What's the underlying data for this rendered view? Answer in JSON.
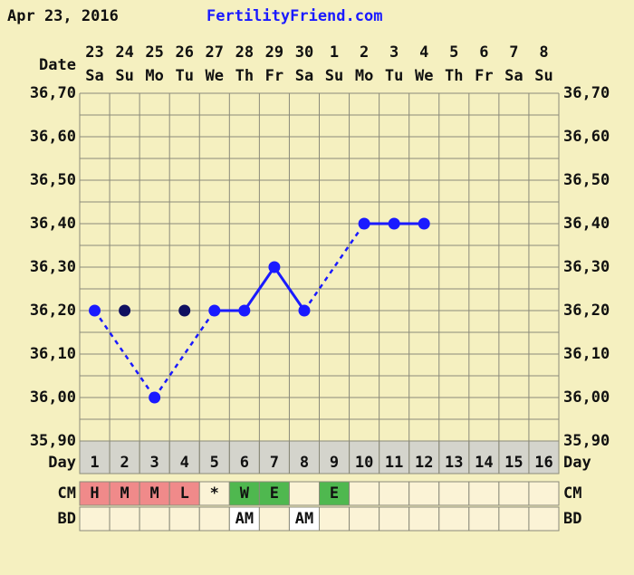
{
  "chart_data": {
    "type": "line",
    "date": "Apr 23, 2016",
    "title": "FertilityFriend.com",
    "x_label": "Date",
    "day_label": "Day",
    "cm_label": "CM",
    "bd_label": "BD",
    "categories": [
      "23",
      "24",
      "25",
      "26",
      "27",
      "28",
      "29",
      "30",
      "1",
      "2",
      "3",
      "4",
      "5",
      "6",
      "7",
      "8"
    ],
    "weekdays": [
      "Sa",
      "Su",
      "Mo",
      "Tu",
      "We",
      "Th",
      "Fr",
      "Sa",
      "Su",
      "Mo",
      "Tu",
      "We",
      "Th",
      "Fr",
      "Sa",
      "Su"
    ],
    "days": [
      1,
      2,
      3,
      4,
      5,
      6,
      7,
      8,
      9,
      10,
      11,
      12,
      13,
      14,
      15,
      16
    ],
    "series": [
      {
        "color": "#1a1aff",
        "excluded_color": "#101060",
        "values": [
          36.2,
          36.2,
          36.0,
          36.2,
          36.2,
          36.2,
          36.3,
          36.2,
          null,
          36.4,
          36.4,
          36.4,
          null,
          null,
          null,
          null
        ],
        "excluded": [
          false,
          true,
          false,
          true,
          false,
          false,
          false,
          false,
          false,
          false,
          false,
          false,
          false,
          false,
          false,
          false
        ]
      }
    ],
    "ylim": [
      35.9,
      36.7
    ],
    "yticks": [
      {
        "value": 35.9,
        "label": "35,90"
      },
      {
        "value": 36.0,
        "label": "36,00"
      },
      {
        "value": 36.1,
        "label": "36,10"
      },
      {
        "value": 36.2,
        "label": "36,20"
      },
      {
        "value": 36.3,
        "label": "36,30"
      },
      {
        "value": 36.4,
        "label": "36,40"
      },
      {
        "value": 36.5,
        "label": "36,50"
      },
      {
        "value": 36.6,
        "label": "36,60"
      },
      {
        "value": 36.7,
        "label": "36,70"
      }
    ],
    "minor_yticks": [
      35.95,
      36.05,
      36.15,
      36.25,
      36.35,
      36.45,
      36.55,
      36.65
    ],
    "grid": true,
    "cm": [
      "H",
      "M",
      "M",
      "L",
      "*",
      "W",
      "E",
      null,
      "E",
      null,
      null,
      null,
      null,
      null,
      null,
      null
    ],
    "cm_colors": {
      "H": "#f08a8a",
      "M": "#f08a8a",
      "L": "#f08a8a",
      "W": "#4fb84f",
      "E": "#4fb84f"
    },
    "bd": [
      null,
      null,
      null,
      null,
      null,
      "AM",
      null,
      "AM",
      null,
      null,
      null,
      null,
      null,
      null,
      null,
      null
    ]
  }
}
